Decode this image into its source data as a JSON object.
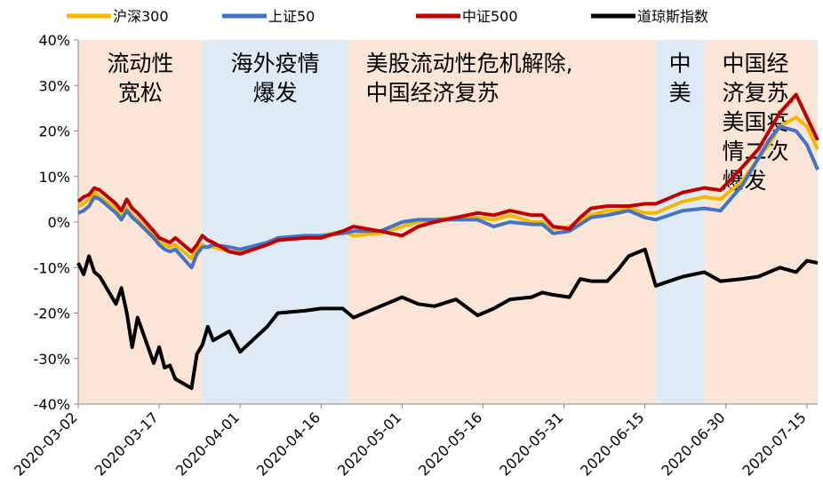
{
  "chart_data": {
    "type": "line",
    "xlim": [
      "2020-03-02",
      "2020-07-17"
    ],
    "xticks": [
      "2020-03-02",
      "2020-03-17",
      "2020-04-01",
      "2020-04-16",
      "2020-05-01",
      "2020-05-16",
      "2020-05-31",
      "2020-06-15",
      "2020-06-30",
      "2020-07-15"
    ],
    "ylim": [
      -40,
      40
    ],
    "yticks": [
      {
        "value": -40,
        "label": "-40%"
      },
      {
        "value": -30,
        "label": "-30%"
      },
      {
        "value": -20,
        "label": "-20%"
      },
      {
        "value": -10,
        "label": "-10%"
      },
      {
        "value": 0,
        "label": "0%"
      },
      {
        "value": 10,
        "label": "10%"
      },
      {
        "value": 20,
        "label": "20%"
      },
      {
        "value": 30,
        "label": "30%"
      },
      {
        "value": 40,
        "label": "40%"
      }
    ],
    "regions": [
      {
        "start": "2020-03-02",
        "end": "2020-03-25",
        "color": "#fbe5d6",
        "label": [
          "流动性",
          "宽松"
        ]
      },
      {
        "start": "2020-03-25",
        "end": "2020-04-21",
        "color": "#deebf7",
        "label": [
          "海外疫情",
          "爆发"
        ]
      },
      {
        "start": "2020-04-21",
        "end": "2020-06-17",
        "color": "#fbe5d6",
        "label": [
          "美股流动性危机解除,",
          "中国经济复苏"
        ]
      },
      {
        "start": "2020-06-17",
        "end": "2020-06-26",
        "color": "#deebf7",
        "label": [
          "中",
          "美"
        ]
      },
      {
        "start": "2020-06-26",
        "end": "2020-07-17",
        "color": "#fbe5d6",
        "label": [
          "中国经",
          "济复苏,",
          "美国疫",
          "情二次",
          "爆发"
        ]
      }
    ],
    "x": [
      "2020-03-02",
      "2020-03-03",
      "2020-03-04",
      "2020-03-05",
      "2020-03-06",
      "2020-03-09",
      "2020-03-10",
      "2020-03-11",
      "2020-03-12",
      "2020-03-13",
      "2020-03-16",
      "2020-03-17",
      "2020-03-18",
      "2020-03-19",
      "2020-03-20",
      "2020-03-23",
      "2020-03-24",
      "2020-03-25",
      "2020-03-26",
      "2020-03-27",
      "2020-03-30",
      "2020-04-01",
      "2020-04-06",
      "2020-04-08",
      "2020-04-13",
      "2020-04-16",
      "2020-04-20",
      "2020-04-22",
      "2020-04-27",
      "2020-05-01",
      "2020-05-04",
      "2020-05-07",
      "2020-05-11",
      "2020-05-15",
      "2020-05-18",
      "2020-05-21",
      "2020-05-25",
      "2020-05-27",
      "2020-05-29",
      "2020-06-01",
      "2020-06-03",
      "2020-06-05",
      "2020-06-08",
      "2020-06-10",
      "2020-06-12",
      "2020-06-15",
      "2020-06-17",
      "2020-06-22",
      "2020-06-26",
      "2020-06-29",
      "2020-07-03",
      "2020-07-06",
      "2020-07-08",
      "2020-07-10",
      "2020-07-13",
      "2020-07-15",
      "2020-07-17"
    ],
    "series": [
      {
        "name": "沪深300",
        "color": "#f5b800",
        "values": [
          3.5,
          4,
          5,
          6.5,
          5.5,
          3,
          1,
          3,
          1.5,
          0.5,
          -3,
          -4.5,
          -5,
          -5.5,
          -5,
          -8,
          -6,
          -5,
          -5.5,
          -5.5,
          -6.5,
          -6.5,
          -5,
          -4,
          -3,
          -3,
          -2,
          -3,
          -2.5,
          -1,
          0,
          0.5,
          1,
          1,
          0.5,
          1.5,
          0,
          0,
          -1.5,
          -1,
          0.5,
          1.5,
          2.5,
          2.5,
          3,
          2,
          2,
          4.5,
          5.5,
          5,
          9,
          14,
          17,
          21,
          23,
          21,
          16
        ]
      },
      {
        "name": "上证50",
        "color": "#4472c4",
        "values": [
          2,
          2.5,
          3.5,
          5.5,
          5,
          2,
          0.5,
          2.5,
          1,
          0,
          -3.5,
          -5,
          -6,
          -6.5,
          -6,
          -10,
          -7,
          -5.5,
          -5.5,
          -5,
          -5.5,
          -6,
          -4.5,
          -3.5,
          -3,
          -3,
          -2.5,
          -2,
          -2,
          0,
          0.5,
          0.5,
          0.5,
          0.5,
          -1,
          0,
          -0.5,
          -0.5,
          -2.5,
          -2,
          -0.5,
          1,
          1.5,
          2,
          2.5,
          1,
          0.5,
          2.5,
          3,
          2.5,
          8,
          14,
          18,
          21,
          20,
          17,
          11.5
        ]
      },
      {
        "name": "中证500",
        "color": "#c00000",
        "values": [
          4.5,
          5.5,
          6,
          7.5,
          7,
          4,
          2.5,
          5,
          3,
          2,
          -2,
          -3.5,
          -4,
          -4.5,
          -3.5,
          -6.5,
          -5,
          -3,
          -4,
          -4.5,
          -6.5,
          -7,
          -5,
          -4,
          -3.5,
          -3.5,
          -2,
          -1,
          -2,
          -3,
          -1,
          0,
          1,
          2,
          1.5,
          2.5,
          1.5,
          1.5,
          -1,
          -1.5,
          1,
          3,
          3.5,
          3.5,
          3.5,
          4,
          4,
          6.5,
          7.5,
          7,
          12,
          16,
          20,
          24,
          28,
          23,
          18
        ]
      },
      {
        "name": "道琼斯指数",
        "color": "#000000",
        "values": [
          -9,
          -11.5,
          -7.5,
          -11,
          -12,
          -18,
          -14.5,
          -20,
          -27.5,
          -21,
          -31,
          -27.5,
          -32,
          -31.5,
          -34.5,
          -36.5,
          -29,
          -27,
          -23,
          -26,
          -24,
          -28.5,
          -23,
          -20,
          -19.5,
          -19,
          -19,
          -21,
          -18.5,
          -16.5,
          -18,
          -18.5,
          -17,
          -20.5,
          -19,
          -17,
          -16.5,
          -15.5,
          -16,
          -16.5,
          -12.5,
          -13,
          -13,
          -10.5,
          -7.5,
          -6,
          -14,
          -12,
          -11,
          -13,
          -12.5,
          -12,
          -11,
          -10,
          -11,
          -8.5,
          -9
        ]
      }
    ]
  }
}
